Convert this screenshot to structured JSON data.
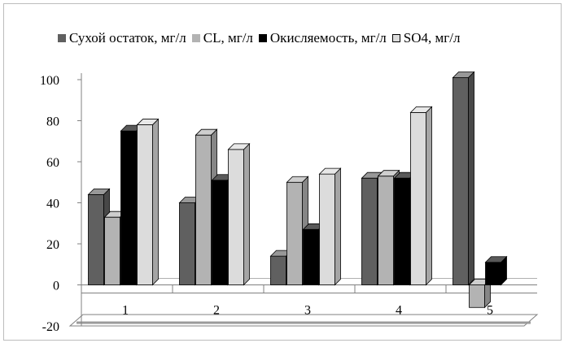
{
  "chart_data": {
    "type": "bar",
    "title": "",
    "xlabel": "",
    "ylabel": "",
    "categories": [
      "1",
      "2",
      "3",
      "4",
      "5"
    ],
    "series": [
      {
        "name": "Сухой остаток, мг/л",
        "color": "#606060",
        "values": [
          44,
          40,
          14,
          52,
          101
        ]
      },
      {
        "name": "CL, мг/л",
        "color": "#b3b3b3",
        "values": [
          33,
          73,
          50,
          53,
          -11
        ]
      },
      {
        "name": "Окисляемость, мг/л",
        "color": "#000000",
        "values": [
          75,
          51,
          27,
          52,
          11
        ]
      },
      {
        "name": "SO4, мг/л",
        "color": "#dcdcdc",
        "values": [
          78,
          66,
          54,
          84,
          0
        ]
      }
    ],
    "ylim": [
      -20,
      100
    ],
    "yticks": [
      -20,
      0,
      20,
      40,
      60,
      80,
      100
    ],
    "legend_position": "top",
    "grid": false
  }
}
